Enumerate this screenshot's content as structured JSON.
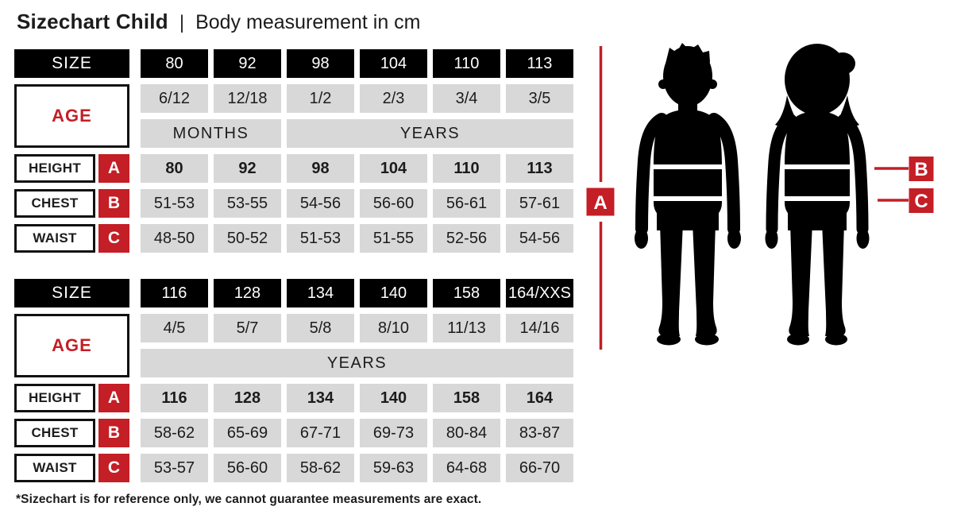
{
  "header": {
    "title": "Sizechart Child",
    "separator": "|",
    "subtitle": "Body measurement in cm"
  },
  "labels": {
    "size": "SIZE",
    "age": "AGE",
    "height": "HEIGHT",
    "chest": "CHEST",
    "waist": "WAIST"
  },
  "markers": {
    "a": "A",
    "b": "B",
    "c": "C"
  },
  "colors": {
    "accent_red": "#c41e26",
    "cell_grey": "#d8d8d8",
    "header_black": "#000000"
  },
  "chart_data": [
    {
      "type": "table",
      "sizes": [
        "80",
        "92",
        "98",
        "104",
        "110",
        "113"
      ],
      "ages": [
        "6/12",
        "12/18",
        "1/2",
        "2/3",
        "3/4",
        "3/5"
      ],
      "age_unit_months": "MONTHS",
      "age_unit_years": "YEARS",
      "height_cm": [
        "80",
        "92",
        "98",
        "104",
        "110",
        "113"
      ],
      "chest_cm": [
        "51-53",
        "53-55",
        "54-56",
        "56-60",
        "56-61",
        "57-61"
      ],
      "waist_cm": [
        "48-50",
        "50-52",
        "51-53",
        "51-55",
        "52-56",
        "54-56"
      ]
    },
    {
      "type": "table",
      "sizes": [
        "116",
        "128",
        "134",
        "140",
        "158",
        "164/XXS"
      ],
      "ages": [
        "4/5",
        "5/7",
        "5/8",
        "8/10",
        "11/13",
        "14/16"
      ],
      "age_unit_years": "YEARS",
      "height_cm": [
        "116",
        "128",
        "134",
        "140",
        "158",
        "164"
      ],
      "chest_cm": [
        "58-62",
        "65-69",
        "67-71",
        "69-73",
        "80-84",
        "83-87"
      ],
      "waist_cm": [
        "53-57",
        "56-60",
        "58-62",
        "59-63",
        "64-68",
        "66-70"
      ]
    }
  ],
  "footnote": "*Sizechart is for reference only, we cannot guarantee measurements are exact."
}
